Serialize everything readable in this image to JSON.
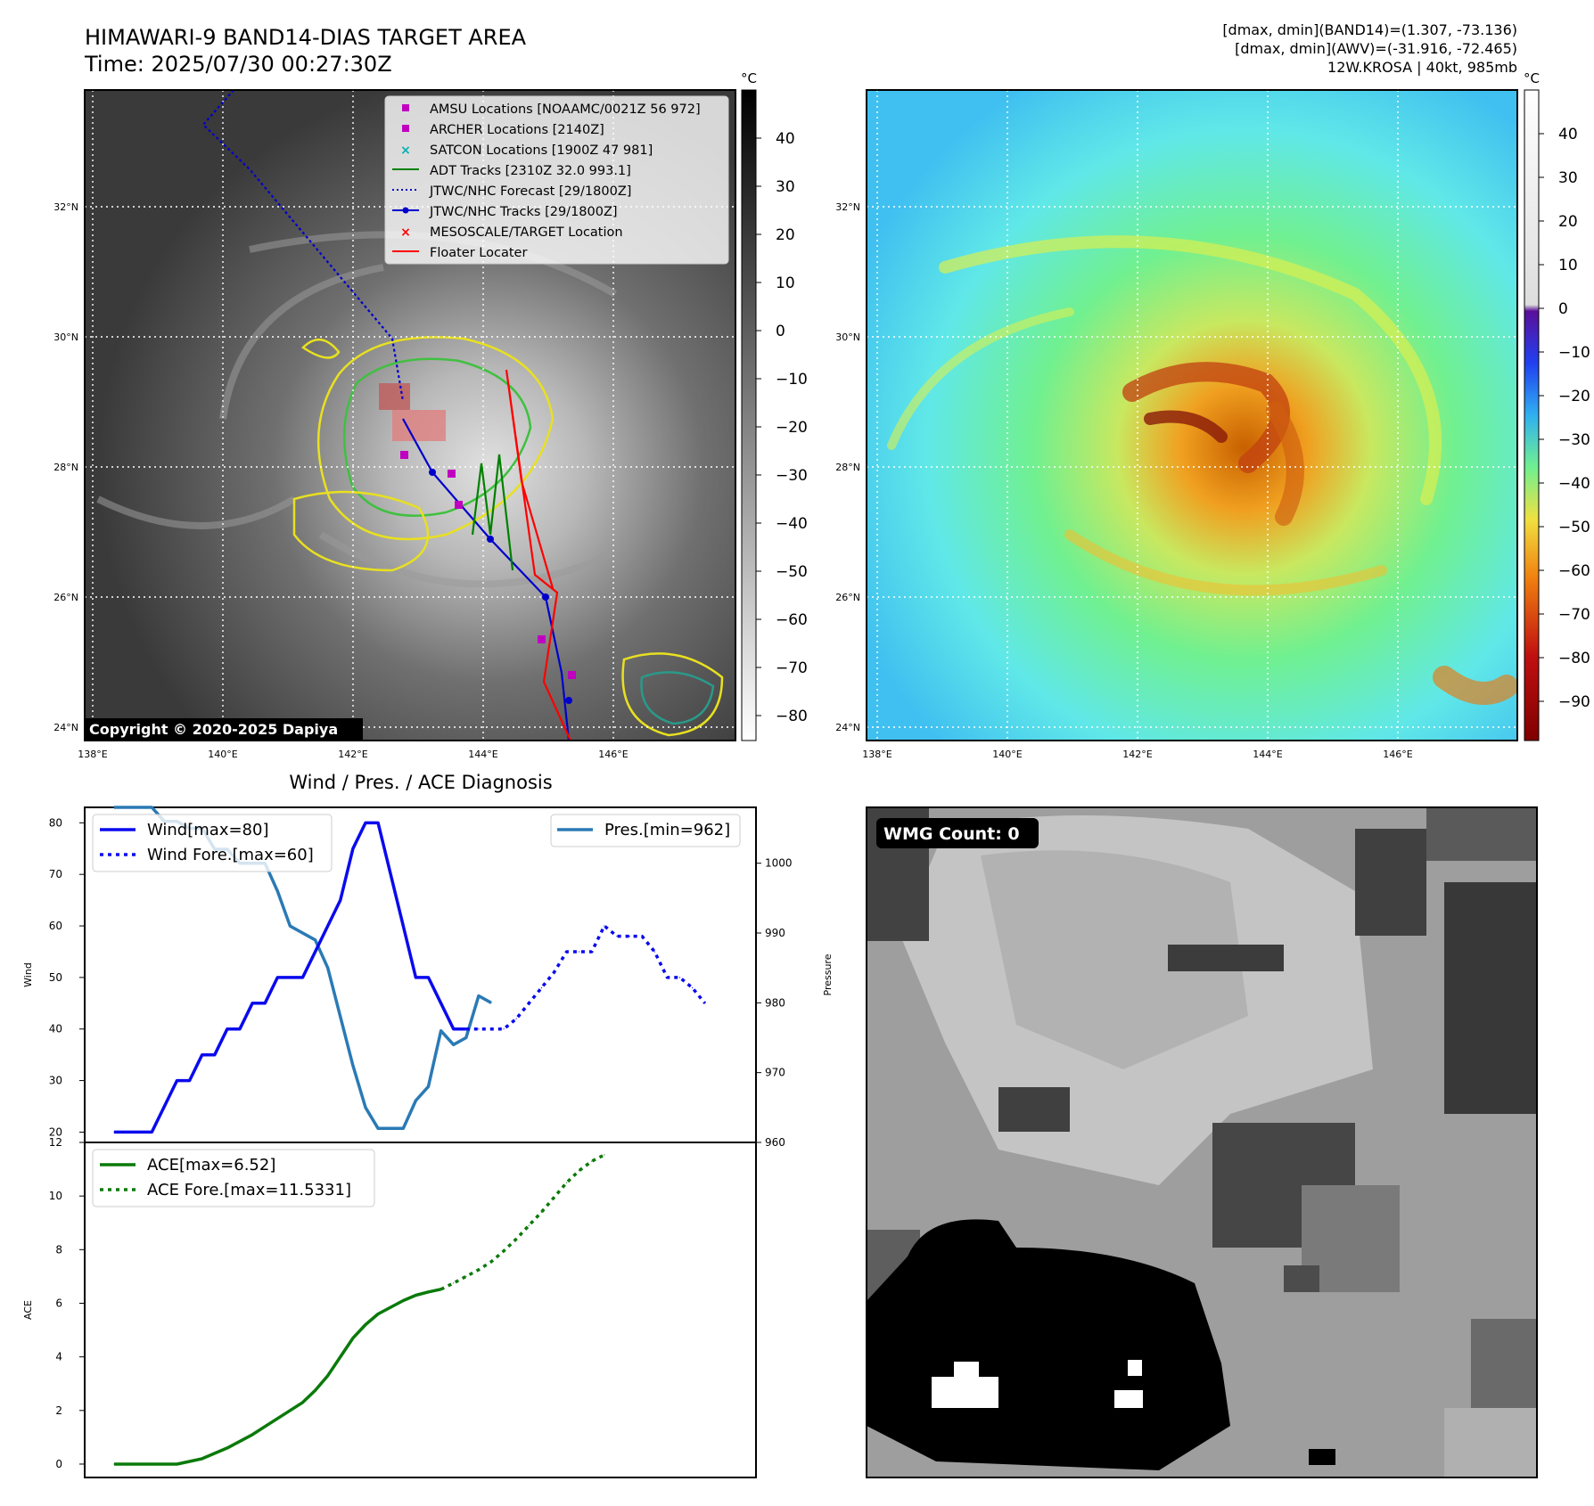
{
  "header": {
    "title_line1": "HIMAWARI-9 BAND14-DIAS TARGET AREA",
    "title_line2": "Time: 2025/07/30 00:27:30Z",
    "right_line1": "[dmax, dmin](BAND14)=(1.307, -73.136)",
    "right_line2": "[dmax, dmin](AWV)=(-31.916, -72.465)",
    "right_line3": "12W.KROSA | 40kt, 985mb"
  },
  "ir_map": {
    "copyright": "Copyright © 2020-2025 Dapiya",
    "unit": "°C",
    "lon_ticks": [
      "138°E",
      "140°E",
      "142°E",
      "144°E",
      "146°E"
    ],
    "lat_ticks": [
      "24°N",
      "26°N",
      "28°N",
      "30°N",
      "32°N"
    ],
    "colorbar_ticks": [
      "40",
      "30",
      "20",
      "10",
      "0",
      "−10",
      "−20",
      "−30",
      "−40",
      "−50",
      "−60",
      "−70",
      "−80"
    ],
    "legend": [
      {
        "label": "AMSU Locations [NOAAMC/0021Z 56 972]",
        "marker": "square",
        "color": "#c000c0"
      },
      {
        "label": "ARCHER Locations [2140Z]",
        "marker": "square",
        "color": "#c000c0"
      },
      {
        "label": "SATCON Locations [1900Z 47 981]",
        "marker": "x",
        "color": "#00b0b0"
      },
      {
        "label": "ADT Tracks [2310Z 32.0 993.1]",
        "marker": "line",
        "color": "#008000"
      },
      {
        "label": "JTWC/NHC Forecast [29/1800Z]",
        "marker": "dotted",
        "color": "#0000cc"
      },
      {
        "label": "JTWC/NHC Tracks [29/1800Z]",
        "marker": "line-dot",
        "color": "#0000cc"
      },
      {
        "label": "MESOSCALE/TARGET Location",
        "marker": "x",
        "color": "#ff0000"
      },
      {
        "label": "Floater Locater",
        "marker": "line",
        "color": "#ff0000"
      }
    ]
  },
  "wv_map": {
    "unit": "°C",
    "lon_ticks": [
      "138°E",
      "140°E",
      "142°E",
      "144°E",
      "146°E"
    ],
    "lat_ticks": [
      "24°N",
      "26°N",
      "28°N",
      "30°N",
      "32°N"
    ],
    "colorbar_ticks": [
      "40",
      "30",
      "20",
      "10",
      "0",
      "−10",
      "−20",
      "−30",
      "−40",
      "−50",
      "−60",
      "−70",
      "−80",
      "−90"
    ]
  },
  "diagnosis": {
    "title": "Wind / Pres. / ACE Diagnosis",
    "wind_ylabel": "Wind",
    "pres_ylabel": "Pressure",
    "ace_ylabel": "ACE",
    "wind_legend": [
      "Wind[max=80]",
      "Wind Fore.[max=60]"
    ],
    "pres_legend": [
      "Pres.[min=962]"
    ],
    "ace_legend": [
      "ACE[max=6.52]",
      "ACE Fore.[max=11.5331]"
    ],
    "wind_ticks": [
      "80",
      "70",
      "60",
      "50",
      "40",
      "30",
      "20"
    ],
    "pres_ticks": [
      "1000",
      "990",
      "980",
      "970",
      "960"
    ],
    "ace_ticks": [
      "12",
      "10",
      "8",
      "6",
      "4",
      "2",
      "0"
    ]
  },
  "wmg": {
    "label": "WMG Count: 0"
  },
  "colors": {
    "wind": "#0a0aee",
    "pressure": "#2a7ab5",
    "ace": "#0a7a0a"
  },
  "chart_data": [
    {
      "type": "line",
      "title": "Wind / Pres. / ACE Diagnosis",
      "ylabel": "Wind",
      "ylim": [
        18,
        83
      ],
      "series": [
        {
          "name": "Wind[max=80]",
          "values": [
            20,
            20,
            20,
            20,
            25,
            30,
            30,
            35,
            35,
            40,
            40,
            45,
            45,
            50,
            50,
            50,
            55,
            60,
            65,
            75,
            80,
            80,
            70,
            60,
            50,
            50,
            45,
            40,
            40
          ]
        },
        {
          "name": "Wind Fore.[max=60]",
          "x_start": 28,
          "values": [
            40,
            40,
            40,
            40,
            42,
            45,
            48,
            51,
            55,
            55,
            55,
            60,
            58,
            58,
            58,
            55,
            50,
            50,
            48,
            45
          ]
        }
      ]
    },
    {
      "type": "line",
      "ylabel": "Pressure",
      "ylim": [
        960,
        1008
      ],
      "series": [
        {
          "name": "Pres.[min=962]",
          "values": [
            1008,
            1008,
            1008,
            1008,
            1006,
            1006,
            1005,
            1005,
            1002,
            1002,
            1000,
            1000,
            1000,
            996,
            991,
            990,
            989,
            985,
            978,
            971,
            965,
            962,
            962,
            962,
            966,
            968,
            976,
            974,
            975,
            981,
            980
          ]
        }
      ]
    },
    {
      "type": "line",
      "ylabel": "ACE",
      "ylim": [
        -0.5,
        12
      ],
      "series": [
        {
          "name": "ACE[max=6.52]",
          "values": [
            0,
            0,
            0,
            0,
            0,
            0,
            0.1,
            0.2,
            0.4,
            0.6,
            0.85,
            1.1,
            1.4,
            1.7,
            2.0,
            2.3,
            2.75,
            3.3,
            4.0,
            4.7,
            5.2,
            5.6,
            5.85,
            6.1,
            6.3,
            6.42,
            6.52
          ]
        },
        {
          "name": "ACE Fore.[max=11.5331]",
          "x_start": 26,
          "values": [
            6.52,
            6.75,
            7.0,
            7.25,
            7.55,
            7.95,
            8.4,
            8.9,
            9.4,
            9.95,
            10.5,
            10.95,
            11.3,
            11.5331
          ]
        }
      ]
    }
  ]
}
